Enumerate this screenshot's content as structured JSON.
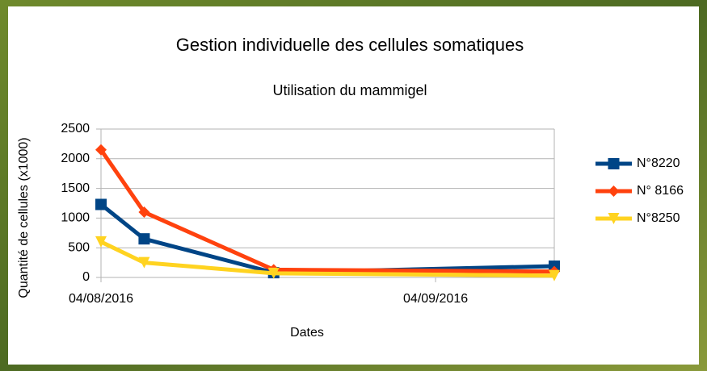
{
  "chart_data": {
    "type": "line",
    "title": "Gestion individuelle des cellules somatiques",
    "subtitle": "Utilisation du mammigel",
    "x_label": "Dates",
    "y_label": "Quantité de cellules (x1000)",
    "x": [
      "04/08/2016",
      "08/08/2016",
      "20/08/2016",
      "15/09/2016"
    ],
    "xlim": [
      "04/08/2016",
      "15/09/2016"
    ],
    "xticks": [
      "04/08/2016",
      "04/09/2016"
    ],
    "ylim": [
      0,
      2500
    ],
    "yticks": [
      0,
      500,
      1000,
      1500,
      2000,
      2500
    ],
    "grid": true,
    "legend": "right",
    "series": [
      {
        "name": "N°8220",
        "color": "#004586",
        "marker": "square",
        "values": [
          1230,
          650,
          80,
          190
        ]
      },
      {
        "name": "N° 8166",
        "color": "#ff420e",
        "marker": "diamond",
        "values": [
          2150,
          1100,
          130,
          100
        ]
      },
      {
        "name": "N°8250",
        "color": "#ffd320",
        "marker": "triangle-down",
        "values": [
          600,
          250,
          70,
          30
        ]
      }
    ]
  }
}
